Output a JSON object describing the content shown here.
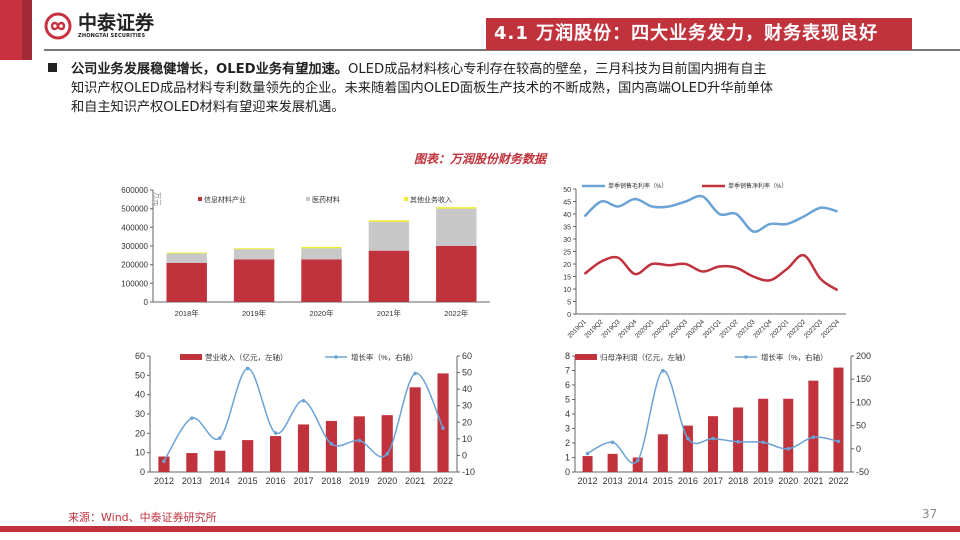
{
  "header": {
    "logo_cn": "中泰证券",
    "logo_en": "ZHONGTAI SECURITIES",
    "title": "4.1 万润股份：四大业务发力，财务表现良好"
  },
  "body": {
    "bold": "公司业务发展稳健增长，OLED业务有望加速。",
    "line1": "OLED成品材料核心专利存在较高的壁垒，三月科技为目前国内拥有自主",
    "line2": "知识产权OLED成品材料专利数量领先的企业。未来随着国内OLED面板生产技术的不断成熟，国内高端OLED升华前单体",
    "line3": "和自主知识产权OLED材料有望迎来发展机遇。"
  },
  "chart_title": "图表：万润股份财务数据",
  "footer": {
    "source": "来源：Wind、中泰证券研究所",
    "page": "37"
  },
  "colors": {
    "red": "#C0323C",
    "gray": "#C8C8C8",
    "yellow": "#EDED2A",
    "blue": "#6BA3D6",
    "brand": "#C8313F"
  },
  "chart_data": [
    {
      "type": "bar",
      "stacked": true,
      "unit": "万元",
      "categories": [
        "2018年",
        "2019年",
        "2020年",
        "2021年",
        "2022年"
      ],
      "ylim": [
        0,
        600000
      ],
      "yticks": [
        0,
        100000,
        200000,
        300000,
        400000,
        500000,
        600000
      ],
      "series": [
        {
          "name": "信息材料产业",
          "values": [
            210000,
            228000,
            228000,
            275000,
            300000
          ]
        },
        {
          "name": "医药材料",
          "values": [
            50000,
            55000,
            60000,
            155000,
            200000
          ]
        },
        {
          "name": "其他业务收入",
          "values": [
            5000,
            5000,
            7000,
            8000,
            8000
          ]
        }
      ],
      "legend": "top"
    },
    {
      "type": "line",
      "categories": [
        "2019Q1",
        "2019Q2",
        "2019Q3",
        "2019Q4",
        "2020Q1",
        "2020Q2",
        "2020Q3",
        "2020Q4",
        "2021Q1",
        "2021Q2",
        "2021Q3",
        "2021Q4",
        "2022Q1",
        "2022Q2",
        "2022Q3",
        "2022Q4"
      ],
      "ylim": [
        0,
        50
      ],
      "yticks": [
        0,
        5,
        10,
        15,
        20,
        25,
        30,
        35,
        40,
        45,
        50
      ],
      "series": [
        {
          "name": "单季销售毛利率（%）",
          "values": [
            39,
            45,
            43,
            46,
            43,
            43,
            45,
            47,
            40,
            40,
            33,
            36,
            36,
            39,
            42.5,
            41
          ]
        },
        {
          "name": "单季销售净利率（%）",
          "values": [
            16,
            21,
            22.5,
            16,
            20,
            19.5,
            20,
            17,
            19,
            18.5,
            15,
            13.5,
            18,
            23.5,
            14,
            9.5
          ]
        }
      ],
      "legend": "top"
    },
    {
      "type": "bar+line",
      "categories": [
        "2012",
        "2013",
        "2014",
        "2015",
        "2016",
        "2017",
        "2018",
        "2019",
        "2020",
        "2021",
        "2022"
      ],
      "ylim": [
        0,
        60
      ],
      "yticks": [
        0,
        10,
        20,
        30,
        40,
        50,
        60
      ],
      "y2lim": [
        -10,
        60
      ],
      "y2ticks": [
        -10,
        0,
        10,
        20,
        30,
        40,
        50,
        60
      ],
      "series": [
        {
          "name": "营业收入（亿元，左轴）",
          "values": [
            8,
            9.8,
            11,
            16.5,
            18.6,
            24.6,
            26.4,
            28.8,
            29.4,
            43.8,
            51
          ]
        },
        {
          "name": "增长率（%，右轴）",
          "values": [
            -3.5,
            22.5,
            10.5,
            52.5,
            13.5,
            33,
            7,
            9,
            1,
            49.5,
            16.5
          ]
        }
      ],
      "legend": "top"
    },
    {
      "type": "bar+line",
      "categories": [
        "2012",
        "2013",
        "2014",
        "2015",
        "2016",
        "2017",
        "2018",
        "2019",
        "2020",
        "2021",
        "2022"
      ],
      "ylim": [
        0,
        8
      ],
      "yticks": [
        0,
        1,
        2,
        3,
        4,
        5,
        6,
        7,
        8
      ],
      "y2lim": [
        -50,
        200
      ],
      "y2ticks": [
        -50,
        0,
        50,
        100,
        150,
        200
      ],
      "series": [
        {
          "name": "归母净利润（亿元，左轴）",
          "values": [
            1.1,
            1.25,
            1.0,
            2.6,
            3.2,
            3.85,
            4.45,
            5.05,
            5.05,
            6.3,
            7.2
          ]
        },
        {
          "name": "增长率（%，右轴）",
          "values": [
            -10,
            14,
            -25,
            168,
            22,
            22,
            15,
            14,
            0,
            25,
            16
          ]
        }
      ],
      "legend": "top"
    }
  ]
}
